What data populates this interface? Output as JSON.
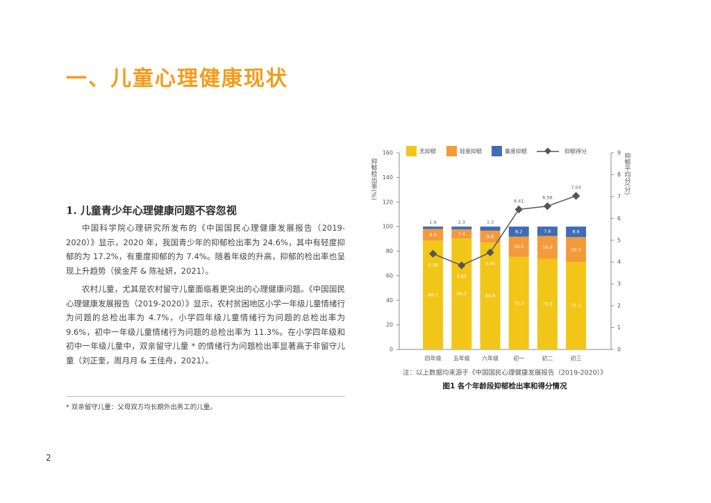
{
  "header": {
    "title": "一、儿童心理健康现状"
  },
  "section": {
    "heading": "1. 儿童青少年心理健康问题不容忽视",
    "paragraphs": [
      "中国科学院心理研究所发布的《中国国民心理健康发展报告（2019-2020）》显示，2020 年，我国青少年的抑郁检出率为 24.6%，其中有轻度抑郁的为 17.2%，有重度抑郁的为 7.4%。随着年级的升高，抑郁的检出率也呈现上升趋势（侯金芹 & 陈祉妍，2021）。",
      "农村儿童，尤其是农村留守儿童面临着更突出的心理健康问题。《中国国民心理健康发展报告（2019-2020）》显示，农村贫困地区小学一年级儿童情绪行为问题的总检出率为 4.7%，小学四年级儿童情绪行为问题的总检出率为 9.6%，初中一年级儿童情绪行为问题的总检出率为 11.3%。在小学四年级和初中一年级儿童中，双亲留守儿童 * 的情绪行为问题检出率显著高于非留守儿童（刘正奎，周月月 & 王佳舟，2021）。"
    ]
  },
  "footnote": "* 双亲留守儿童：父母双方均长期外出务工的儿童。",
  "page_number": "2",
  "figure": {
    "note": "注：以上数据均来源于《中国国民心理健康发展报告（2019-2020）》",
    "caption": "图1 各个年龄段抑郁检出率和得分情况"
  },
  "chart_data": {
    "type": "bar",
    "stacked": true,
    "ylabel": "抑郁检出率(%)",
    "y2label": "抑郁平均分(分)",
    "categories": [
      "四年级",
      "五年级",
      "六年级",
      "初一",
      "初二",
      "初三"
    ],
    "series": [
      {
        "name": "无抑郁",
        "color": "#f2c618",
        "values": [
          88.7,
          90.3,
          86.9,
          75.3,
          73.8,
          71.1
        ]
      },
      {
        "name": "轻度抑郁",
        "color": "#f49a3b",
        "values": [
          9.4,
          7.4,
          9.8,
          16.5,
          18.6,
          20.3
        ]
      },
      {
        "name": "重度抑郁",
        "color": "#3f6db5",
        "values": [
          1.9,
          2.3,
          3.3,
          8.2,
          7.6,
          8.6
        ]
      },
      {
        "name": "抑郁得分",
        "color": "#555555",
        "type": "line",
        "axis": "y2",
        "values": [
          4.38,
          3.85,
          4.44,
          6.41,
          6.56,
          7.03
        ]
      }
    ],
    "ylim": [
      0,
      160
    ],
    "yticks": [
      0,
      20,
      40,
      60,
      80,
      100,
      120,
      140,
      160
    ],
    "y2lim": [
      0,
      9
    ],
    "y2ticks": [
      0,
      1,
      2,
      3,
      4,
      5,
      6,
      7,
      8,
      9
    ]
  }
}
